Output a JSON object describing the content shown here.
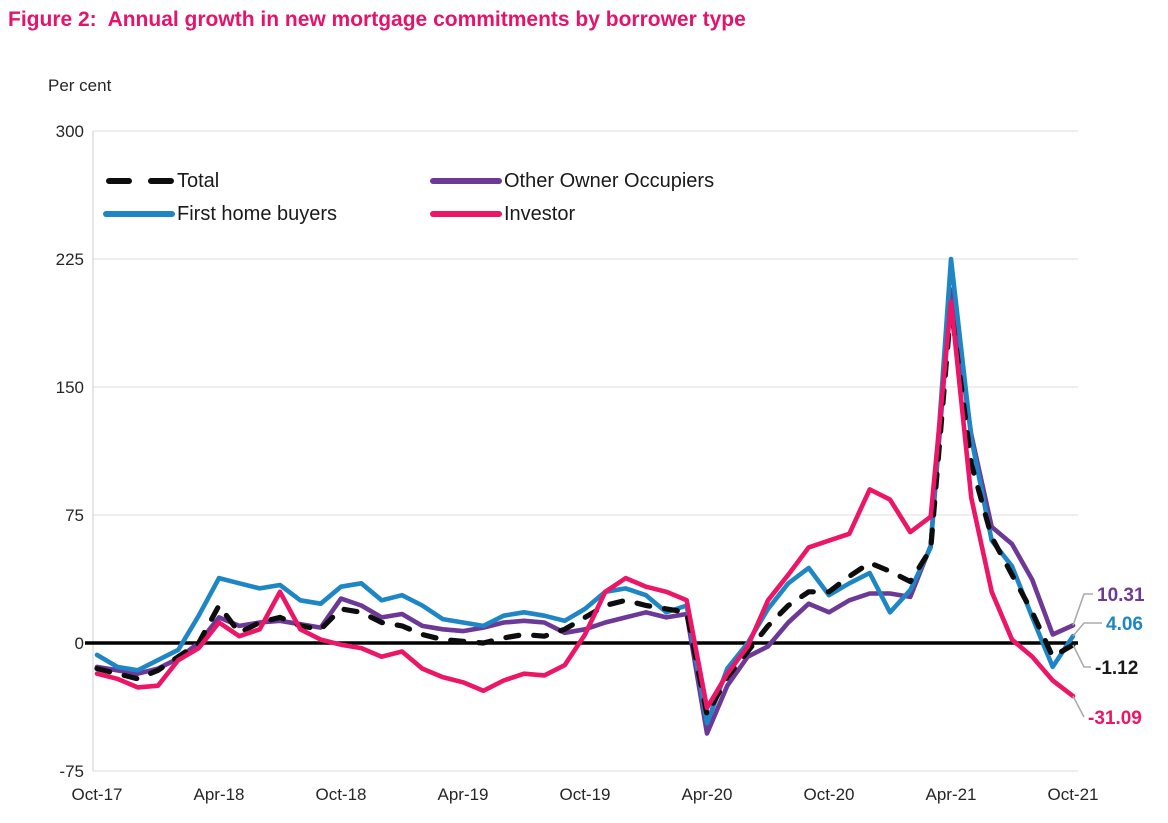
{
  "figure": {
    "title": "Figure 2:  Annual growth in new mortgage commitments by borrower type",
    "units_label": "Per cent"
  },
  "chart_data": {
    "type": "line",
    "title": "Annual growth in new mortgage commitments by borrower type",
    "ylabel": "Per cent",
    "ylim": [
      -75,
      300
    ],
    "y_ticks": [
      300,
      225,
      150,
      75,
      0,
      -75
    ],
    "x_tick_labels": [
      "Oct-17",
      "Apr-18",
      "Oct-18",
      "Apr-19",
      "Oct-19",
      "Apr-20",
      "Oct-20",
      "Apr-21",
      "Oct-21"
    ],
    "grid": "horizontal-light",
    "zero_line": true,
    "x": [
      "Oct-17",
      "Nov-17",
      "Dec-17",
      "Jan-18",
      "Feb-18",
      "Mar-18",
      "Apr-18",
      "May-18",
      "Jun-18",
      "Jul-18",
      "Aug-18",
      "Sep-18",
      "Oct-18",
      "Nov-18",
      "Dec-18",
      "Jan-19",
      "Feb-19",
      "Mar-19",
      "Apr-19",
      "May-19",
      "Jun-19",
      "Jul-19",
      "Aug-19",
      "Sep-19",
      "Oct-19",
      "Nov-19",
      "Dec-19",
      "Jan-20",
      "Feb-20",
      "Mar-20",
      "Apr-20",
      "May-20",
      "Jun-20",
      "Jul-20",
      "Aug-20",
      "Sep-20",
      "Oct-20",
      "Nov-20",
      "Dec-20",
      "Jan-21",
      "Feb-21",
      "Mar-21",
      "Apr-21",
      "May-21",
      "Jun-21",
      "Jul-21",
      "Aug-21",
      "Sep-21",
      "Oct-21"
    ],
    "series": [
      {
        "name": "Total",
        "color": "#0d0d0d",
        "dashed": true,
        "values": [
          -15,
          -18,
          -21,
          -16,
          -8,
          0,
          22,
          6,
          12,
          15,
          10,
          8,
          20,
          18,
          12,
          10,
          5,
          2,
          1,
          0,
          3,
          5,
          4,
          8,
          15,
          22,
          25,
          22,
          20,
          18,
          -42,
          -20,
          -5,
          10,
          22,
          30,
          30,
          39,
          47,
          42,
          36,
          55,
          197,
          105,
          62,
          40,
          18,
          -8,
          -1.12
        ]
      },
      {
        "name": "First home buyers",
        "color": "#1f86c6",
        "dashed": false,
        "values": [
          -7,
          -14,
          -16,
          -10,
          -4,
          16,
          38,
          35,
          32,
          34,
          25,
          23,
          33,
          35,
          25,
          28,
          22,
          14,
          12,
          10,
          16,
          18,
          16,
          13,
          20,
          30,
          32,
          28,
          18,
          22,
          -47,
          -15,
          0,
          20,
          35,
          44,
          28,
          35,
          41,
          18,
          31,
          56,
          225,
          120,
          60,
          45,
          15,
          -14,
          4.06
        ]
      },
      {
        "name": "Other Owner Occupiers",
        "color": "#6c3996",
        "dashed": false,
        "values": [
          -14,
          -16,
          -18,
          -15,
          -9,
          0,
          15,
          10,
          12,
          13,
          11,
          9,
          26,
          22,
          15,
          17,
          10,
          8,
          7,
          9,
          12,
          13,
          12,
          6,
          8,
          12,
          15,
          18,
          15,
          17,
          -53,
          -25,
          -8,
          -2,
          12,
          23,
          18,
          25,
          29,
          29,
          27,
          57,
          207,
          122,
          68,
          58,
          37,
          5,
          10.31
        ]
      },
      {
        "name": "Investor",
        "color": "#ec1566",
        "dashed": false,
        "values": [
          -18,
          -21,
          -26,
          -25,
          -10,
          -3,
          12,
          4,
          8,
          30,
          8,
          2,
          -1,
          -3,
          -8,
          -5,
          -15,
          -20,
          -23,
          -28,
          -22,
          -18,
          -19,
          -13,
          5,
          30,
          38,
          33,
          30,
          25,
          -38,
          -18,
          -2,
          25,
          40,
          56,
          60,
          64,
          90,
          84,
          65,
          74,
          200,
          85,
          30,
          2,
          -8,
          -22,
          -31.09
        ]
      }
    ],
    "legend": {
      "position": "top-left-inside",
      "items": [
        {
          "label": "Total",
          "series": "Total"
        },
        {
          "label": "Other Owner Occupiers",
          "series": "Other Owner Occupiers"
        },
        {
          "label": "First home buyers",
          "series": "First home buyers"
        },
        {
          "label": "Investor",
          "series": "Investor"
        }
      ]
    },
    "end_labels": [
      {
        "series": "Other Owner Occupiers",
        "text": "10.31",
        "color": "#6c3996"
      },
      {
        "series": "First home buyers",
        "text": "4.06",
        "color": "#1f86c6"
      },
      {
        "series": "Total",
        "text": "-1.12",
        "color": "#1a1a1a"
      },
      {
        "series": "Investor",
        "text": "-31.09",
        "color": "#ec1566"
      }
    ]
  }
}
